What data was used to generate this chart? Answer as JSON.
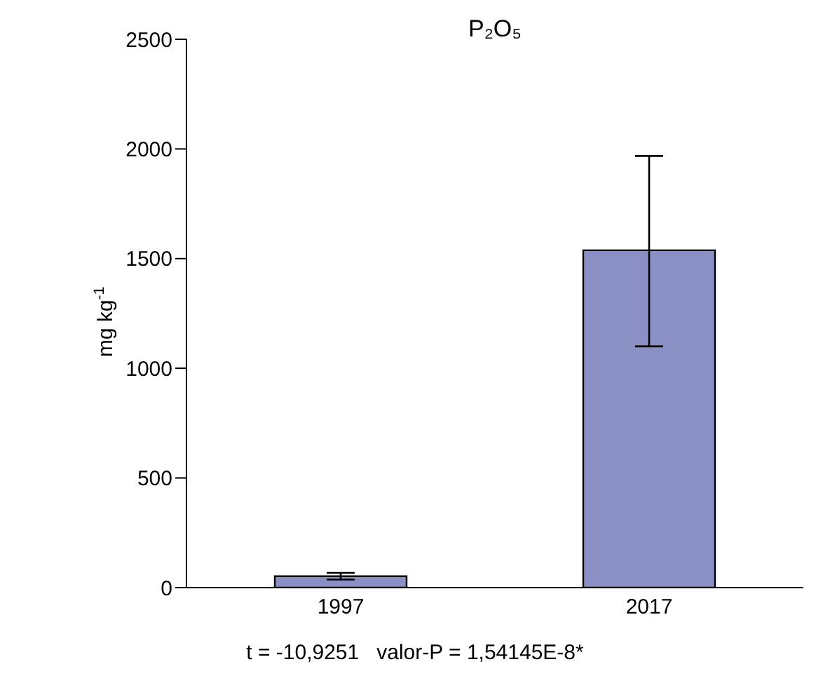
{
  "chart_data": {
    "type": "bar",
    "title": "P₂O₅",
    "ylabel": "mg kg$^{-1}$",
    "categories": [
      "1997",
      "2017"
    ],
    "values": [
      52,
      1538
    ],
    "errors": [
      15,
      [
        1100,
        1968
      ]
    ],
    "color": "#8a8fc4",
    "ylim": [
      0,
      2500
    ],
    "yticks": [
      0,
      500,
      1000,
      1500,
      2000,
      2500
    ],
    "grid": false,
    "annotations": [
      "t = -10,9251   valor-P = 1,54145E-8*"
    ]
  }
}
